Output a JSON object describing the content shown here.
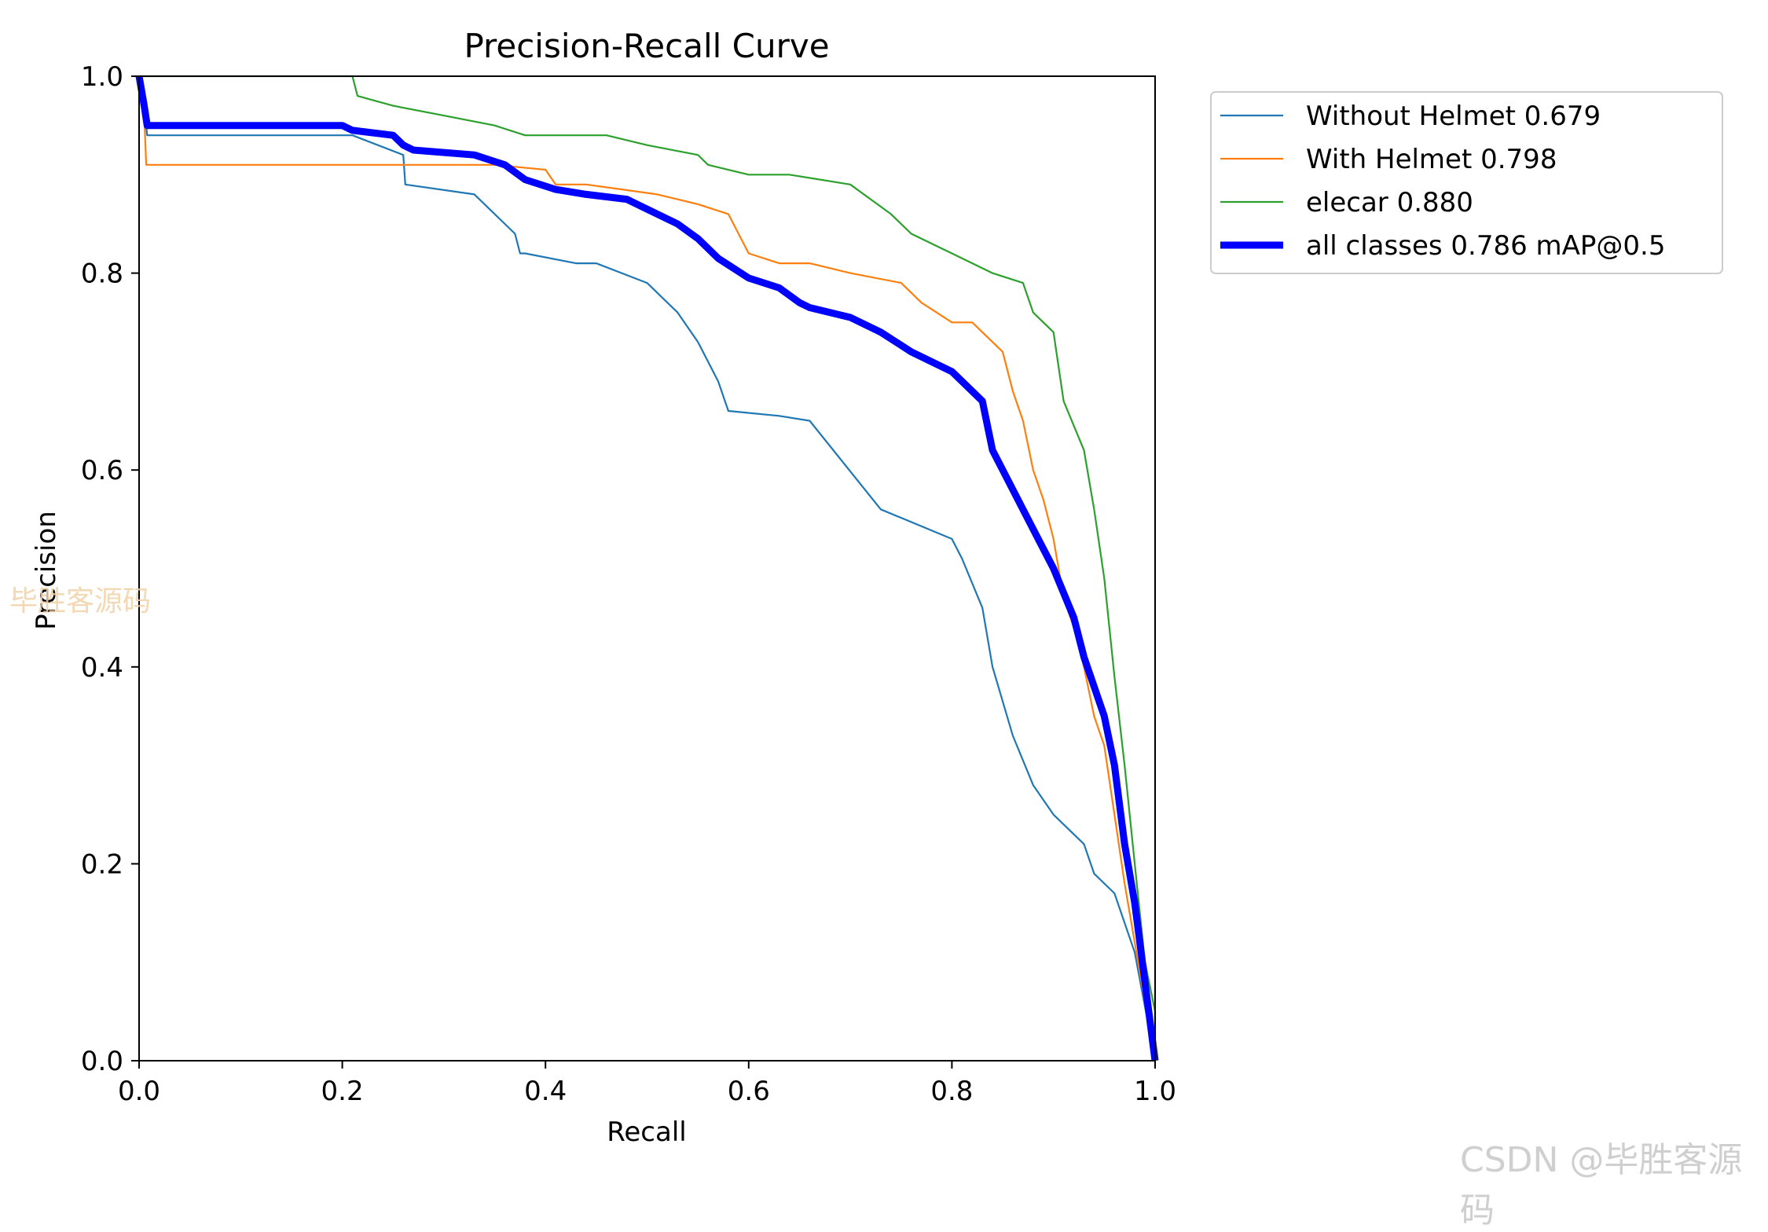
{
  "chart_data": {
    "type": "line",
    "title": "Precision-Recall Curve",
    "xlabel": "Recall",
    "ylabel": "Precision",
    "xlim": [
      0,
      1
    ],
    "ylim": [
      0,
      1
    ],
    "xticks": [
      "0.0",
      "0.2",
      "0.4",
      "0.6",
      "0.8",
      "1.0"
    ],
    "yticks": [
      "0.0",
      "0.2",
      "0.4",
      "0.6",
      "0.8",
      "1.0"
    ],
    "legend_position": "outside-top-right",
    "series": [
      {
        "name": "Without Helmet 0.679",
        "color": "#1f77b4",
        "width": "thin",
        "x": [
          0.0,
          0.005,
          0.008,
          0.01,
          0.21,
          0.26,
          0.262,
          0.33,
          0.35,
          0.37,
          0.375,
          0.38,
          0.43,
          0.45,
          0.5,
          0.53,
          0.55,
          0.57,
          0.58,
          0.63,
          0.66,
          0.73,
          0.8,
          0.81,
          0.83,
          0.84,
          0.86,
          0.88,
          0.9,
          0.93,
          0.94,
          0.96,
          0.98,
          1.0
        ],
        "y": [
          1.0,
          0.97,
          0.94,
          0.94,
          0.94,
          0.92,
          0.89,
          0.88,
          0.86,
          0.84,
          0.82,
          0.82,
          0.81,
          0.81,
          0.79,
          0.76,
          0.73,
          0.69,
          0.66,
          0.655,
          0.65,
          0.56,
          0.53,
          0.51,
          0.46,
          0.4,
          0.33,
          0.28,
          0.25,
          0.22,
          0.19,
          0.17,
          0.11,
          0.0
        ]
      },
      {
        "name": "With Helmet 0.798",
        "color": "#ff7f0e",
        "width": "thin",
        "x": [
          0.0,
          0.005,
          0.007,
          0.35,
          0.4,
          0.41,
          0.44,
          0.51,
          0.55,
          0.58,
          0.6,
          0.63,
          0.66,
          0.7,
          0.75,
          0.77,
          0.8,
          0.82,
          0.85,
          0.86,
          0.87,
          0.88,
          0.89,
          0.9,
          0.91,
          0.92,
          0.93,
          0.94,
          0.95,
          0.96,
          0.97,
          0.98,
          1.0
        ],
        "y": [
          1.0,
          0.96,
          0.91,
          0.91,
          0.905,
          0.89,
          0.89,
          0.88,
          0.87,
          0.86,
          0.82,
          0.81,
          0.81,
          0.8,
          0.79,
          0.77,
          0.75,
          0.75,
          0.72,
          0.68,
          0.65,
          0.6,
          0.57,
          0.53,
          0.47,
          0.44,
          0.4,
          0.35,
          0.32,
          0.25,
          0.18,
          0.12,
          0.0
        ]
      },
      {
        "name": "elecar 0.880",
        "color": "#2ca02c",
        "width": "thin",
        "x": [
          0.0,
          0.21,
          0.215,
          0.25,
          0.3,
          0.35,
          0.38,
          0.46,
          0.5,
          0.55,
          0.56,
          0.6,
          0.64,
          0.7,
          0.74,
          0.76,
          0.78,
          0.8,
          0.84,
          0.87,
          0.88,
          0.89,
          0.9,
          0.91,
          0.93,
          0.94,
          0.95,
          0.96,
          0.97,
          0.98,
          0.99,
          1.0,
          1.0
        ],
        "y": [
          1.0,
          1.0,
          0.98,
          0.97,
          0.96,
          0.95,
          0.94,
          0.94,
          0.93,
          0.92,
          0.91,
          0.9,
          0.9,
          0.89,
          0.86,
          0.84,
          0.83,
          0.82,
          0.8,
          0.79,
          0.76,
          0.75,
          0.74,
          0.67,
          0.62,
          0.56,
          0.49,
          0.39,
          0.3,
          0.2,
          0.1,
          0.05,
          0.0
        ]
      },
      {
        "name": "all classes 0.786 mAP@0.5",
        "color": "#0000ff",
        "width": "thick",
        "x": [
          0.0,
          0.005,
          0.008,
          0.02,
          0.2,
          0.21,
          0.25,
          0.26,
          0.27,
          0.33,
          0.36,
          0.38,
          0.41,
          0.44,
          0.48,
          0.5,
          0.53,
          0.55,
          0.57,
          0.6,
          0.63,
          0.65,
          0.66,
          0.7,
          0.73,
          0.76,
          0.8,
          0.81,
          0.83,
          0.84,
          0.86,
          0.88,
          0.9,
          0.92,
          0.93,
          0.95,
          0.96,
          0.97,
          0.98,
          0.99,
          1.0
        ],
        "y": [
          1.0,
          0.97,
          0.95,
          0.95,
          0.95,
          0.945,
          0.94,
          0.93,
          0.925,
          0.92,
          0.91,
          0.895,
          0.885,
          0.88,
          0.875,
          0.865,
          0.85,
          0.835,
          0.815,
          0.795,
          0.785,
          0.77,
          0.765,
          0.755,
          0.74,
          0.72,
          0.7,
          0.69,
          0.67,
          0.62,
          0.58,
          0.54,
          0.5,
          0.45,
          0.41,
          0.35,
          0.3,
          0.22,
          0.16,
          0.08,
          0.0
        ]
      }
    ]
  },
  "watermarks": {
    "left": "毕胜客源码",
    "bottom_right": "CSDN @毕胜客源码"
  }
}
